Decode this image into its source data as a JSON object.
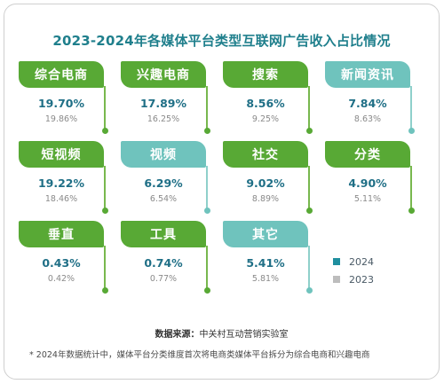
{
  "title": "2023-2024年各媒体平台类型互联网广告收入占比情况",
  "chart_data": {
    "type": "table",
    "categories": [
      "综合电商",
      "兴趣电商",
      "搜索",
      "新闻资讯",
      "短视频",
      "视频",
      "社交",
      "分类",
      "垂直",
      "工具",
      "其它"
    ],
    "series": [
      {
        "name": "2024",
        "values": [
          "19.70%",
          "17.89%",
          "8.56%",
          "7.84%",
          "19.22%",
          "6.29%",
          "9.02%",
          "4.90%",
          "0.43%",
          "0.74%",
          "5.41%"
        ]
      },
      {
        "name": "2023",
        "values": [
          "19.86%",
          "16.25%",
          "9.25%",
          "8.63%",
          "18.46%",
          "6.54%",
          "8.89%",
          "5.11%",
          "0.42%",
          "0.77%",
          "5.81%"
        ]
      }
    ],
    "card_colors": [
      "green",
      "green",
      "green",
      "teal",
      "green",
      "teal",
      "green",
      "green",
      "green",
      "green",
      "teal"
    ],
    "colors": {
      "green": "#58a935",
      "teal": "#6fc3bd",
      "legend_2024": "#1f8f9f",
      "legend_2023": "#bdbdbd"
    }
  },
  "legend": {
    "y2024": "2024",
    "y2023": "2023"
  },
  "source": {
    "label": "数据来源：",
    "text": "中关村互动营销实验室"
  },
  "note": "* 2024年数据统计中，媒体平台分类维度首次将电商类媒体平台拆分为综合电商和兴趣电商"
}
